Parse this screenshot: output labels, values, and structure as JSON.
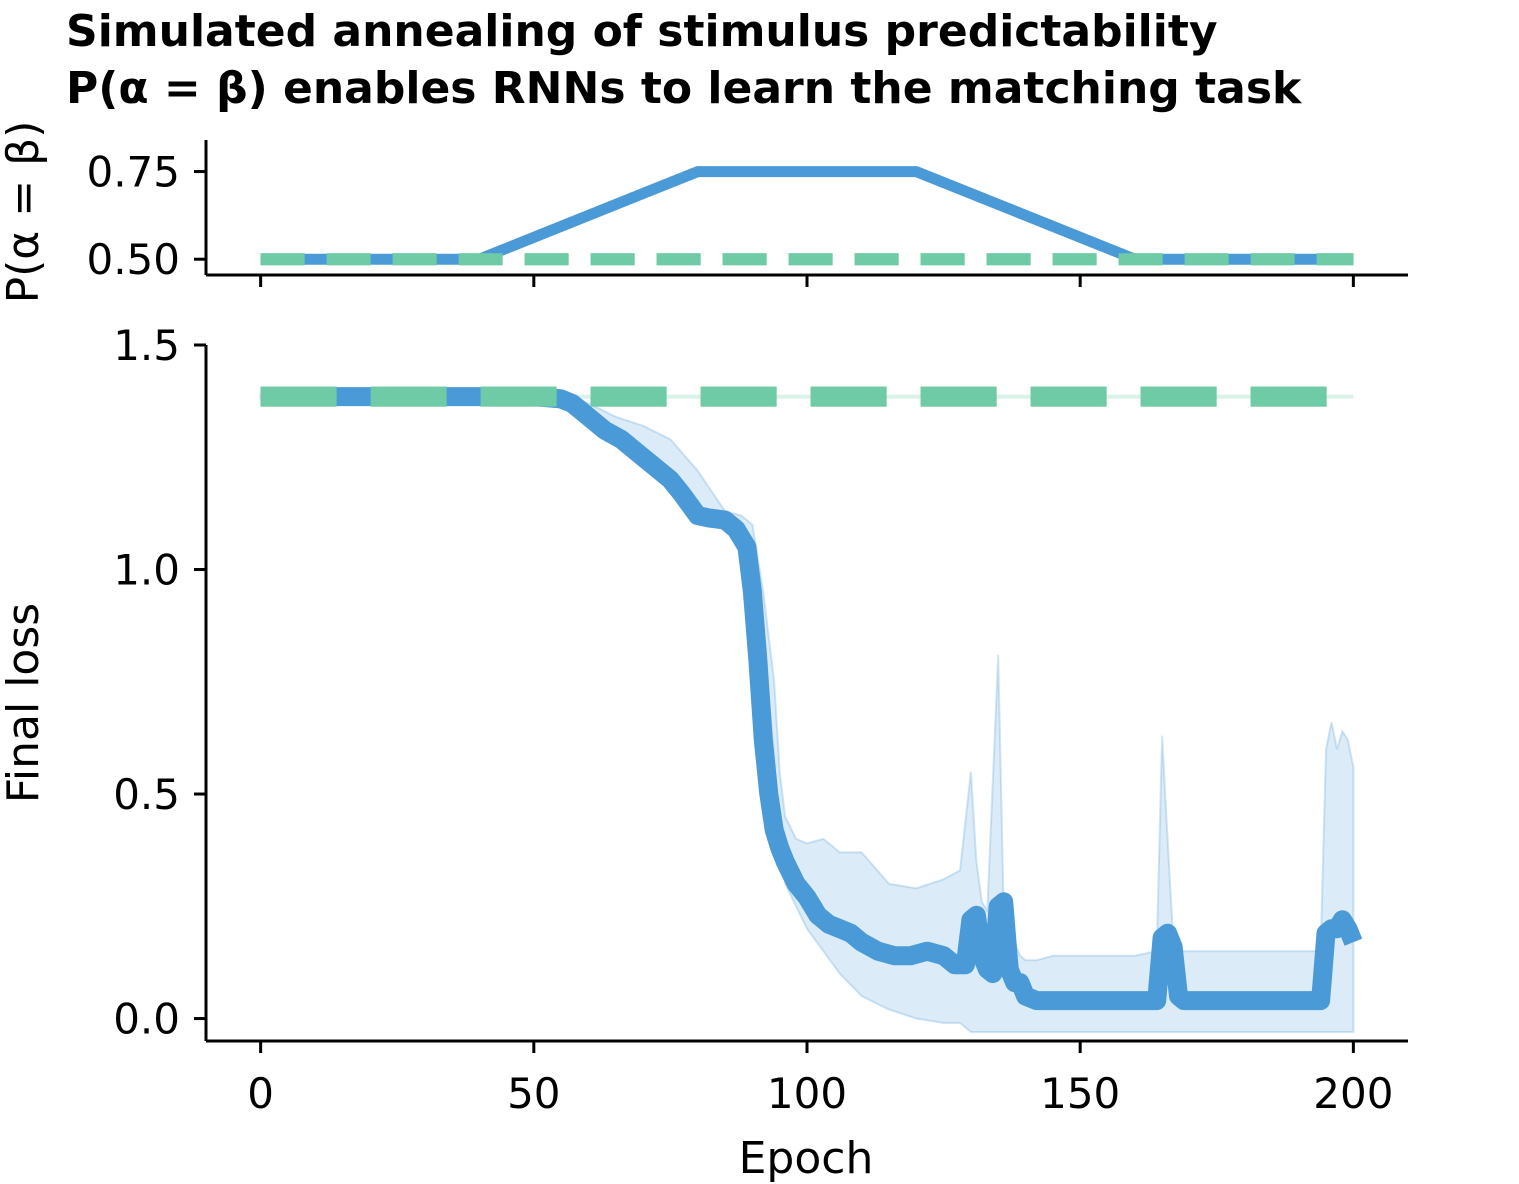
{
  "chart_data": [
    {
      "id": "top",
      "type": "line",
      "title_line1": "Simulated annealing of stimulus predictability",
      "title_line2": "P(α = β) enables RNNs to learn the matching task",
      "ylabel": "P(α = β)",
      "xlim": [
        -10,
        210
      ],
      "ylim": [
        0.455,
        0.84
      ],
      "yticks": [
        0.5,
        0.75
      ],
      "ytick_labels": [
        "0.50",
        "0.75"
      ],
      "xticks": [
        0,
        50,
        100,
        150,
        200
      ],
      "colors": {
        "annealed": "#4a9ad8",
        "constant": "#6fcba5"
      },
      "series": [
        {
          "x": [
            0,
            40,
            80,
            120,
            160,
            200
          ],
          "values": [
            0.5,
            0.5,
            0.75,
            0.75,
            0.5,
            0.5
          ]
        },
        {
          "x": [
            0,
            200
          ],
          "values": [
            0.5,
            0.5
          ]
        }
      ]
    },
    {
      "id": "bottom",
      "type": "line",
      "xlabel": "Epoch",
      "ylabel": "Final loss",
      "xlim": [
        -10,
        210
      ],
      "ylim": [
        -0.05,
        1.5
      ],
      "yticks": [
        0.0,
        0.5,
        1.0,
        1.5
      ],
      "ytick_labels": [
        "0.0",
        "0.5",
        "1.0",
        "1.5"
      ],
      "xticks": [
        0,
        50,
        100,
        150,
        200
      ],
      "xtick_labels": [
        "0",
        "50",
        "100",
        "150",
        "200"
      ],
      "colors": {
        "annealed": "#4a9ad8",
        "constant": "#6fcba5",
        "band": "#4a9ad8"
      },
      "series": [
        {
          "x": [
            0,
            10,
            20,
            30,
            40,
            50,
            55,
            57,
            60,
            63,
            66,
            69,
            72,
            75,
            77,
            80,
            82,
            85,
            87,
            89,
            90,
            91,
            92,
            93,
            94,
            95,
            96,
            98,
            100,
            102,
            104,
            106,
            108,
            110,
            113,
            116,
            119,
            122,
            125,
            127,
            129,
            130,
            131,
            132,
            133,
            134,
            135,
            136,
            137,
            138,
            139,
            140,
            142,
            145,
            150,
            155,
            160,
            164,
            165,
            166,
            167,
            168,
            169,
            170,
            175,
            180,
            185,
            190,
            194,
            195,
            196,
            197,
            198,
            199,
            200
          ],
          "values": [
            1.385,
            1.385,
            1.385,
            1.385,
            1.385,
            1.385,
            1.38,
            1.37,
            1.34,
            1.31,
            1.29,
            1.26,
            1.23,
            1.2,
            1.17,
            1.12,
            1.115,
            1.11,
            1.09,
            1.05,
            0.95,
            0.8,
            0.62,
            0.5,
            0.42,
            0.38,
            0.35,
            0.3,
            0.27,
            0.23,
            0.21,
            0.2,
            0.19,
            0.17,
            0.15,
            0.14,
            0.14,
            0.15,
            0.14,
            0.12,
            0.12,
            0.22,
            0.23,
            0.14,
            0.11,
            0.1,
            0.25,
            0.26,
            0.11,
            0.08,
            0.08,
            0.05,
            0.04,
            0.04,
            0.04,
            0.04,
            0.04,
            0.04,
            0.18,
            0.19,
            0.16,
            0.05,
            0.04,
            0.04,
            0.04,
            0.04,
            0.04,
            0.04,
            0.04,
            0.19,
            0.2,
            0.2,
            0.22,
            0.2,
            0.17
          ]
        },
        {
          "x": [
            0,
            200
          ],
          "values": [
            1.385,
            1.385
          ]
        }
      ],
      "band": {
        "x": [
          0,
          50,
          56,
          60,
          65,
          70,
          75,
          80,
          85,
          88,
          90,
          92,
          94,
          95,
          96,
          98,
          100,
          103,
          106,
          110,
          115,
          120,
          125,
          128,
          130,
          131,
          132,
          133,
          135,
          136,
          137,
          138,
          139,
          140,
          142,
          145,
          150,
          160,
          164,
          165,
          166,
          167,
          168,
          170,
          180,
          190,
          194,
          195,
          196,
          197,
          198,
          199,
          200
        ],
        "upper": [
          1.39,
          1.39,
          1.39,
          1.37,
          1.34,
          1.32,
          1.29,
          1.22,
          1.13,
          1.12,
          1.1,
          0.95,
          0.75,
          0.55,
          0.45,
          0.4,
          0.39,
          0.4,
          0.37,
          0.37,
          0.3,
          0.29,
          0.31,
          0.33,
          0.55,
          0.35,
          0.26,
          0.24,
          0.81,
          0.24,
          0.2,
          0.17,
          0.14,
          0.13,
          0.13,
          0.14,
          0.14,
          0.14,
          0.15,
          0.63,
          0.4,
          0.18,
          0.15,
          0.15,
          0.15,
          0.15,
          0.15,
          0.6,
          0.66,
          0.6,
          0.64,
          0.62,
          0.56
        ],
        "lower": [
          1.38,
          1.38,
          1.37,
          1.32,
          1.28,
          1.24,
          1.19,
          1.13,
          1.1,
          1.06,
          1.0,
          0.85,
          0.58,
          0.4,
          0.3,
          0.25,
          0.2,
          0.15,
          0.1,
          0.05,
          0.02,
          0.0,
          -0.01,
          -0.01,
          -0.03,
          -0.03,
          -0.03,
          -0.03,
          -0.03,
          -0.03,
          -0.03,
          -0.03,
          -0.03,
          -0.03,
          -0.03,
          -0.03,
          -0.03,
          -0.03,
          -0.03,
          -0.03,
          -0.03,
          -0.03,
          -0.03,
          -0.03,
          -0.03,
          -0.03,
          -0.03,
          -0.03,
          -0.03,
          -0.03,
          -0.03,
          -0.03,
          -0.03
        ]
      }
    }
  ]
}
